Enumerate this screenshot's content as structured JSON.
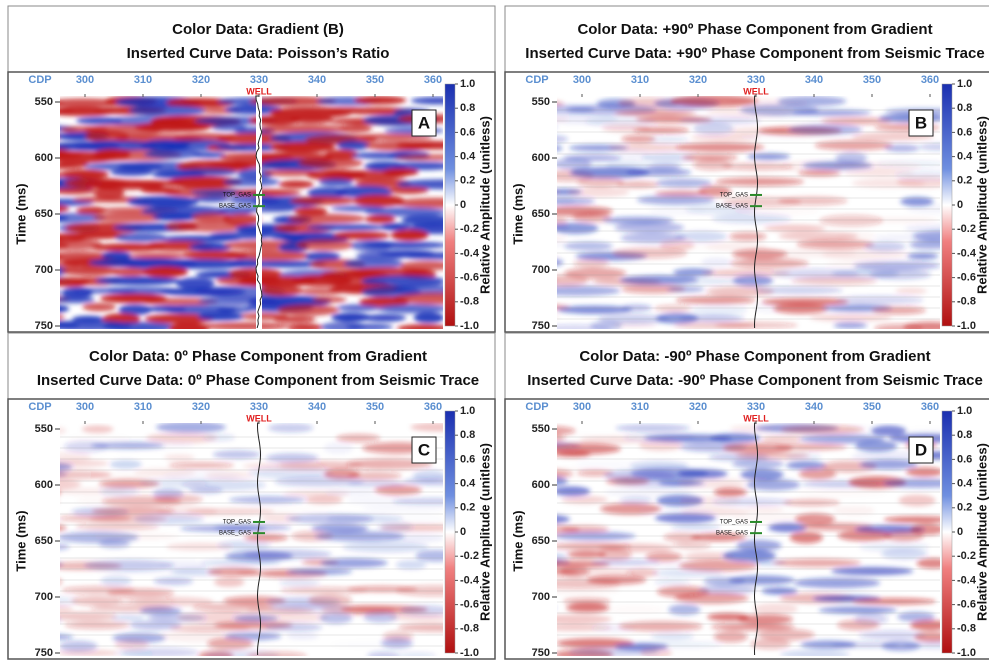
{
  "panels": [
    {
      "title": [
        "Color Data: Gradient (B)",
        "Inserted Curve Data: Poisson’s Ratio"
      ],
      "letter": "A"
    },
    {
      "title": [
        "Color Data: +90º Phase Component from Gradient",
        "Inserted Curve Data: +90º Phase Component from Seismic Trace"
      ],
      "letter": "B"
    },
    {
      "title": [
        "Color Data: 0º Phase Component from Gradient",
        "Inserted Curve Data: 0º Phase Component from Seismic Trace"
      ],
      "letter": "C"
    },
    {
      "title": [
        "Color Data: -90º Phase Component from Gradient",
        "Inserted Curve Data: -90º Phase Component from Seismic Trace"
      ],
      "letter": "D"
    }
  ],
  "axes": {
    "x_label": "CDP",
    "xticks": [
      300,
      310,
      320,
      330,
      340,
      350,
      360
    ],
    "well_cdp": 330,
    "well_label": "WELL",
    "y_label": "Time (ms)",
    "yticks": [
      550,
      600,
      650,
      700,
      750
    ],
    "ylim": [
      550,
      750
    ],
    "colorbar_label": "Relative Amplitude (unitless)",
    "colorbar_lim": [
      -1,
      1
    ],
    "colorbar_ticks": [
      {
        "value": 1,
        "label": "1.0"
      },
      0.8,
      0.6,
      0.4,
      0.2,
      0,
      -0.2,
      -0.4,
      -0.6,
      -0.8,
      {
        "value": -1,
        "label": "-1.0"
      }
    ],
    "top_gas": "TOP_GAS",
    "base_gas": "BASE_GAS"
  }
}
